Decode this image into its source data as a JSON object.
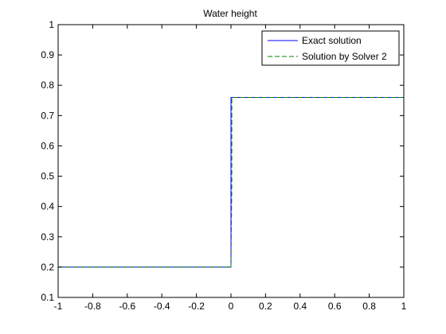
{
  "chart_data": {
    "type": "line",
    "title": "Water height",
    "xlabel": "",
    "ylabel": "",
    "xlim": [
      -1,
      1
    ],
    "ylim": [
      0.1,
      1
    ],
    "xticks": [
      -1,
      -0.8,
      -0.6,
      -0.4,
      -0.2,
      0,
      0.2,
      0.4,
      0.6,
      0.8,
      1
    ],
    "xtick_labels": [
      "-1",
      "-0.8",
      "-0.6",
      "-0.4",
      "-0.2",
      "0",
      "0.2",
      "0.4",
      "0.6",
      "0.8",
      "1"
    ],
    "yticks": [
      0.1,
      0.2,
      0.3,
      0.4,
      0.5,
      0.6,
      0.7,
      0.8,
      0.9,
      1
    ],
    "ytick_labels": [
      "0.1",
      "0.2",
      "0.3",
      "0.4",
      "0.5",
      "0.6",
      "0.7",
      "0.8",
      "0.9",
      "1"
    ],
    "grid": false,
    "legend_position": "top-right",
    "series": [
      {
        "name": "Exact solution",
        "color": "#0000ff",
        "style": "solid",
        "x": [
          -1,
          0,
          0,
          0,
          0,
          1
        ],
        "y": [
          0.2,
          0.2,
          0.2,
          0.76,
          0.76,
          0.76
        ]
      },
      {
        "name": "Solution by Solver 2",
        "color": "#008000",
        "style": "dashed",
        "x": [
          -1,
          0,
          0.005,
          0.005,
          1
        ],
        "y": [
          0.2,
          0.2,
          0.48,
          0.76,
          0.76
        ]
      }
    ]
  }
}
